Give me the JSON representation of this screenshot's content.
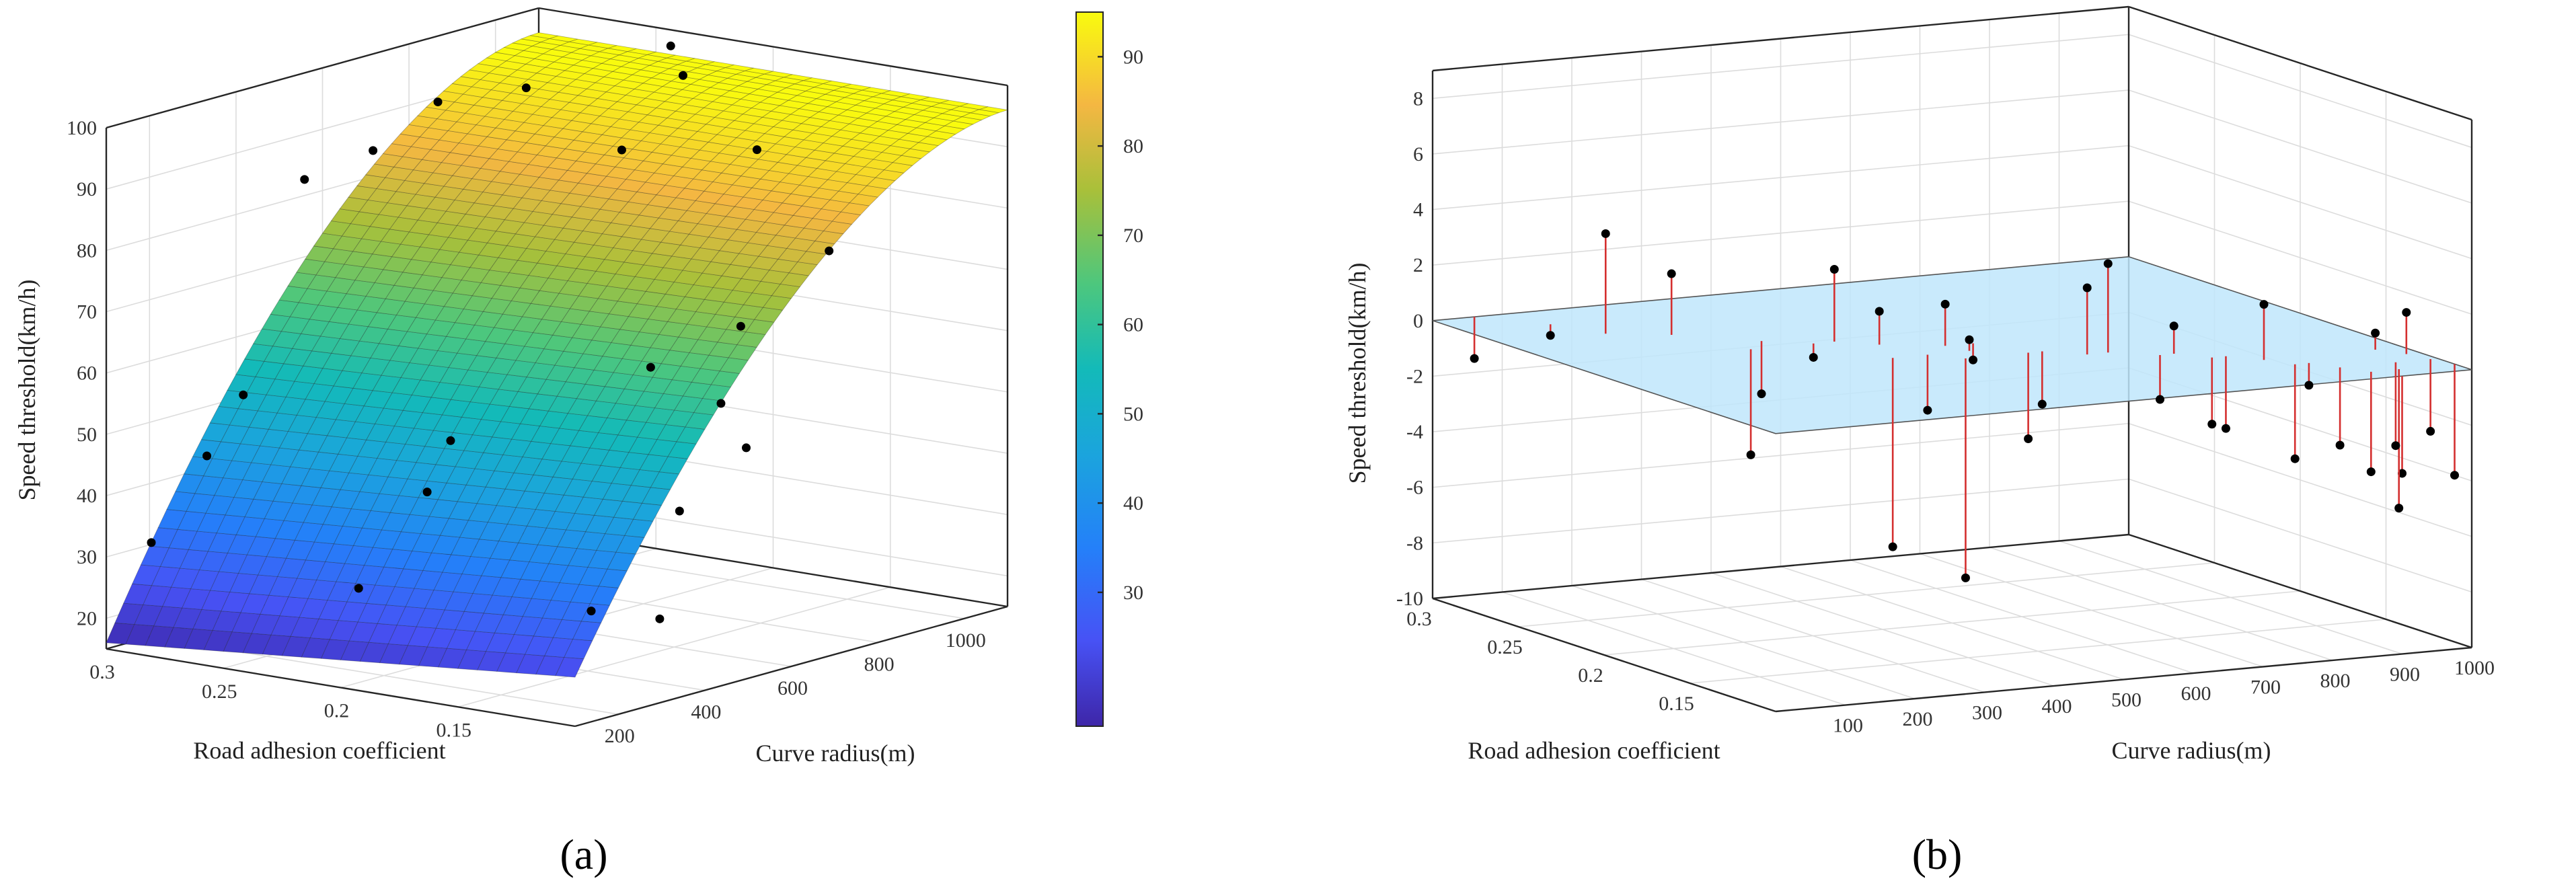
{
  "chart_data": [
    {
      "type": "surface",
      "panel_label": "(a)",
      "xlabel": "Road adhesion coefficient",
      "ylabel": "Curve radius(m)",
      "zlabel": "Speed threshold(km/h)",
      "x_range": [
        0.1,
        0.3
      ],
      "y_range": [
        100,
        1100
      ],
      "zlim": [
        15,
        100
      ],
      "x_ticks": [
        0.3,
        0.25,
        0.2,
        0.15
      ],
      "y_ticks": [
        200,
        400,
        600,
        800,
        1000
      ],
      "z_ticks": [
        20,
        30,
        40,
        50,
        60,
        70,
        80,
        90,
        100
      ],
      "colorbar": {
        "min": 15,
        "max": 95,
        "ticks": [
          30,
          40,
          50,
          60,
          70,
          80,
          90
        ],
        "colormap": "parula"
      },
      "surface_corners": {
        "x0.3_y100": 16,
        "x0.1_y100": 23,
        "x0.3_y1100": 96,
        "x0.1_y1100": 96
      },
      "points": [
        {
          "x": 0.29,
          "y": 150,
          "z": 32
        },
        {
          "x": 0.27,
          "y": 170,
          "z": 47
        },
        {
          "x": 0.26,
          "y": 200,
          "z": 57
        },
        {
          "x": 0.22,
          "y": 250,
          "z": 27
        },
        {
          "x": 0.2,
          "y": 300,
          "z": 43
        },
        {
          "x": 0.19,
          "y": 300,
          "z": 52
        },
        {
          "x": 0.13,
          "y": 300,
          "z": 28
        },
        {
          "x": 0.11,
          "y": 350,
          "z": 27
        },
        {
          "x": 0.12,
          "y": 450,
          "z": 42
        },
        {
          "x": 0.28,
          "y": 450,
          "z": 86
        },
        {
          "x": 0.26,
          "y": 500,
          "z": 91
        },
        {
          "x": 0.11,
          "y": 550,
          "z": 51
        },
        {
          "x": 0.13,
          "y": 600,
          "z": 56
        },
        {
          "x": 0.16,
          "y": 600,
          "z": 60
        },
        {
          "x": 0.26,
          "y": 650,
          "z": 96
        },
        {
          "x": 0.14,
          "y": 700,
          "z": 66
        },
        {
          "x": 0.2,
          "y": 750,
          "z": 90
        },
        {
          "x": 0.25,
          "y": 800,
          "z": 96
        },
        {
          "x": 0.13,
          "y": 850,
          "z": 76
        },
        {
          "x": 0.17,
          "y": 900,
          "z": 89
        },
        {
          "x": 0.22,
          "y": 1000,
          "z": 96
        },
        {
          "x": 0.24,
          "y": 1080,
          "z": 98
        }
      ]
    },
    {
      "type": "scatter3d_residuals",
      "panel_label": "(b)",
      "xlabel": "Road adhesion coefficient",
      "ylabel": "Curve radius(m)",
      "zlabel": "Speed threshold(km/h)",
      "x_range": [
        0.1,
        0.3
      ],
      "y_range": [
        0,
        1000
      ],
      "zlim": [
        -10,
        9
      ],
      "x_ticks": [
        0.3,
        0.25,
        0.2,
        0.15
      ],
      "y_ticks": [
        100,
        200,
        300,
        400,
        500,
        600,
        700,
        800,
        900,
        1000
      ],
      "z_ticks": [
        8,
        6,
        4,
        2,
        0,
        -2,
        -4,
        -6,
        -8,
        -10
      ],
      "plane_z": 0,
      "points": [
        {
          "x": 0.3,
          "y": 60,
          "z": -1.5
        },
        {
          "x": 0.28,
          "y": 120,
          "z": -0.4
        },
        {
          "x": 0.26,
          "y": 150,
          "z": 3.6
        },
        {
          "x": 0.25,
          "y": 220,
          "z": 2.2
        },
        {
          "x": 0.22,
          "y": 260,
          "z": -3.8
        },
        {
          "x": 0.23,
          "y": 300,
          "z": -1.9
        },
        {
          "x": 0.22,
          "y": 350,
          "z": -0.5
        },
        {
          "x": 0.22,
          "y": 380,
          "z": 2.6
        },
        {
          "x": 0.19,
          "y": 390,
          "z": -6.8
        },
        {
          "x": 0.21,
          "y": 420,
          "z": 1.2
        },
        {
          "x": 0.19,
          "y": 440,
          "z": -2.0
        },
        {
          "x": 0.18,
          "y": 470,
          "z": -7.9
        },
        {
          "x": 0.2,
          "y": 490,
          "z": 1.5
        },
        {
          "x": 0.19,
          "y": 500,
          "z": 0.4
        },
        {
          "x": 0.2,
          "y": 530,
          "z": -0.6
        },
        {
          "x": 0.18,
          "y": 560,
          "z": -3.1
        },
        {
          "x": 0.18,
          "y": 580,
          "z": -1.9
        },
        {
          "x": 0.17,
          "y": 620,
          "z": 2.4
        },
        {
          "x": 0.17,
          "y": 650,
          "z": 3.2
        },
        {
          "x": 0.16,
          "y": 700,
          "z": -1.6
        },
        {
          "x": 0.16,
          "y": 720,
          "z": 1.0
        },
        {
          "x": 0.15,
          "y": 750,
          "z": -2.4
        },
        {
          "x": 0.15,
          "y": 770,
          "z": -2.6
        },
        {
          "x": 0.14,
          "y": 800,
          "z": 2.0
        },
        {
          "x": 0.13,
          "y": 820,
          "z": -3.4
        },
        {
          "x": 0.13,
          "y": 840,
          "z": -0.8
        },
        {
          "x": 0.12,
          "y": 860,
          "z": -2.8
        },
        {
          "x": 0.11,
          "y": 880,
          "z": -3.6
        },
        {
          "x": 0.1,
          "y": 900,
          "z": -3.5
        },
        {
          "x": 0.11,
          "y": 920,
          "z": -5.0
        },
        {
          "x": 0.12,
          "y": 940,
          "z": -3.0
        },
        {
          "x": 0.14,
          "y": 960,
          "z": 0.6
        },
        {
          "x": 0.13,
          "y": 980,
          "z": 1.5
        },
        {
          "x": 0.11,
          "y": 1000,
          "z": -4.0
        },
        {
          "x": 0.12,
          "y": 990,
          "z": -2.6
        }
      ]
    }
  ]
}
